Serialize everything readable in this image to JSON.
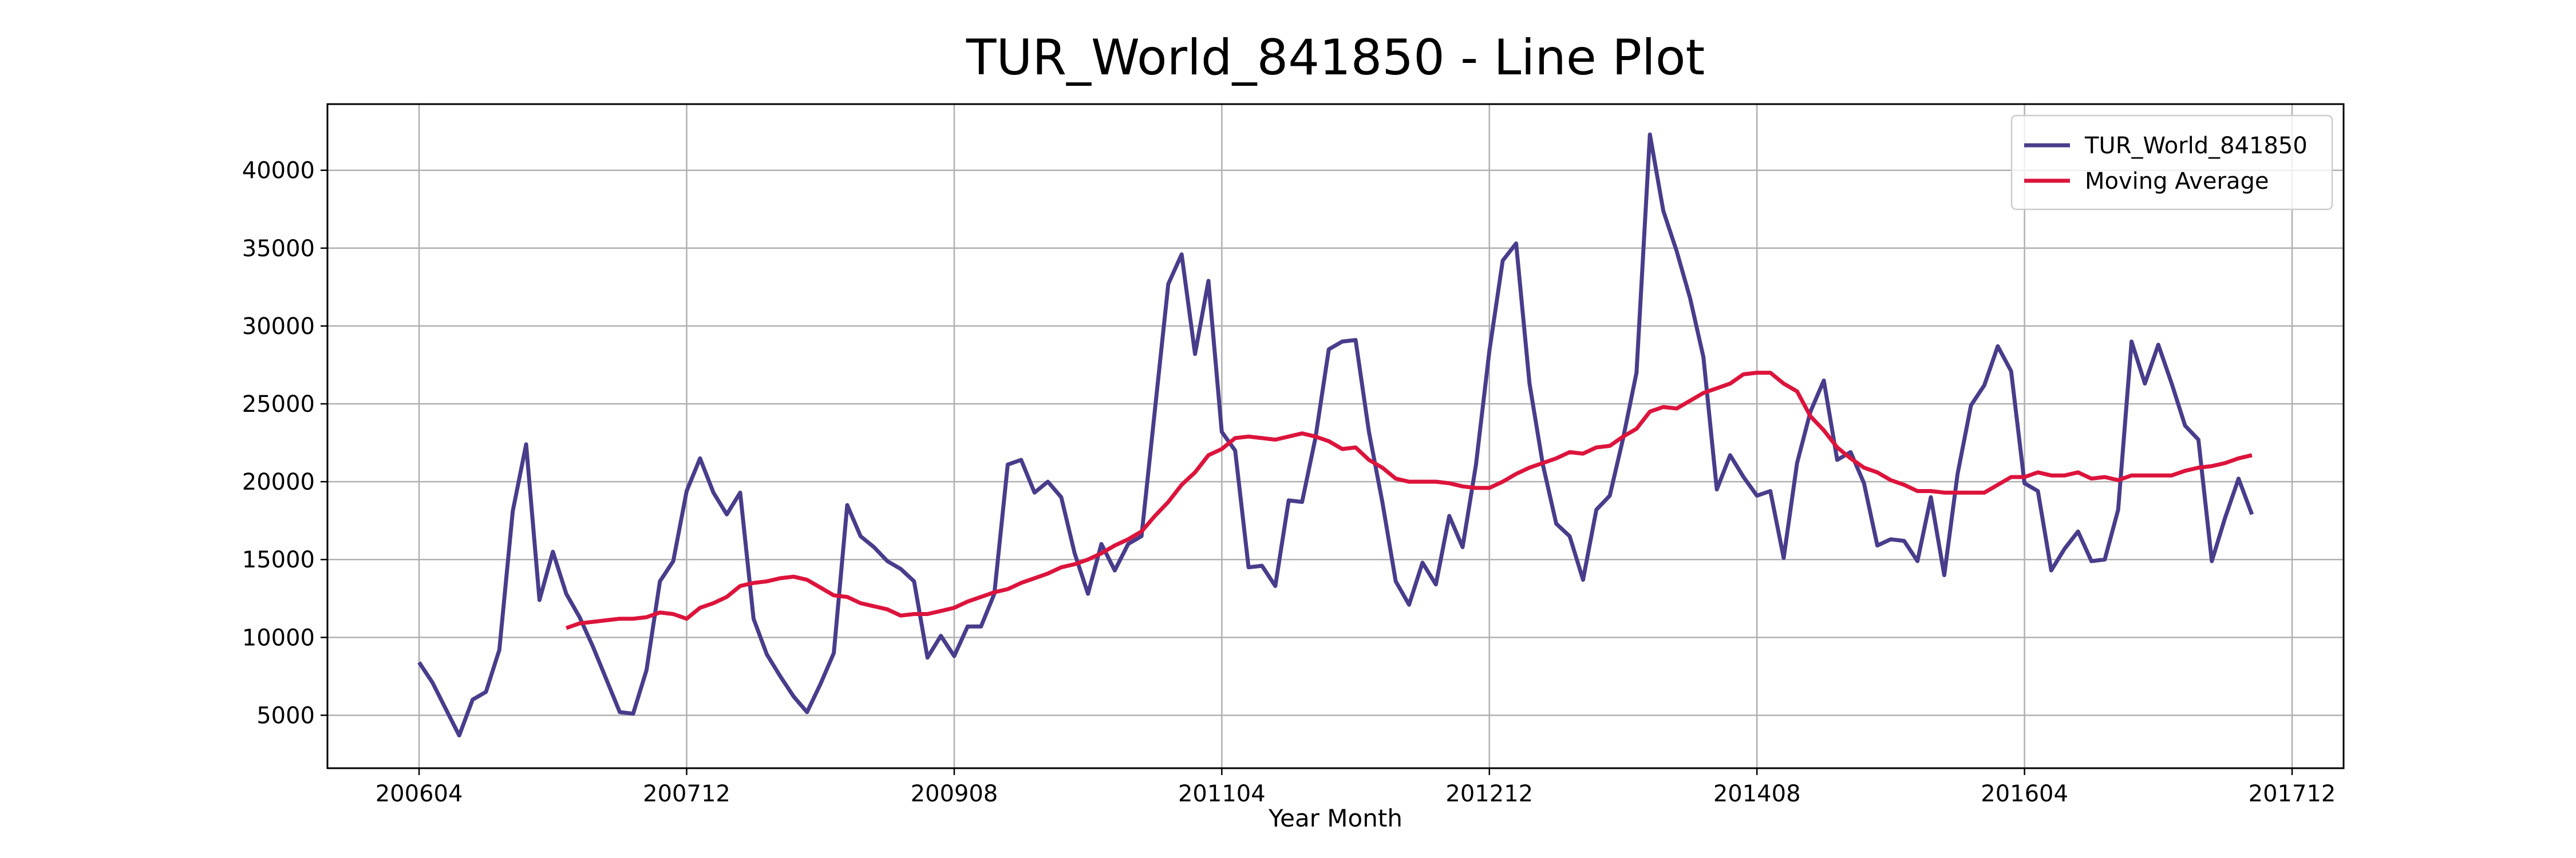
{
  "chart_data": {
    "type": "line",
    "title": "TUR_World_841850 - Line Plot",
    "x_label": "Year Month",
    "x": [
      "200604",
      "200605",
      "200606",
      "200607",
      "200608",
      "200609",
      "200610",
      "200611",
      "200612",
      "200701",
      "200702",
      "200703",
      "200704",
      "200705",
      "200706",
      "200707",
      "200708",
      "200709",
      "200710",
      "200711",
      "200712",
      "200801",
      "200802",
      "200803",
      "200804",
      "200805",
      "200806",
      "200807",
      "200808",
      "200809",
      "200810",
      "200811",
      "200812",
      "200901",
      "200902",
      "200903",
      "200904",
      "200905",
      "200906",
      "200907",
      "200908",
      "200909",
      "200910",
      "200911",
      "200912",
      "201001",
      "201002",
      "201003",
      "201004",
      "201005",
      "201006",
      "201007",
      "201008",
      "201009",
      "201010",
      "201011",
      "201012",
      "201101",
      "201102",
      "201103",
      "201104",
      "201105",
      "201106",
      "201107",
      "201108",
      "201109",
      "201110",
      "201111",
      "201112",
      "201201",
      "201202",
      "201203",
      "201204",
      "201205",
      "201206",
      "201207",
      "201208",
      "201209",
      "201210",
      "201211",
      "201212",
      "201301",
      "201302",
      "201303",
      "201304",
      "201305",
      "201306",
      "201307",
      "201308",
      "201309",
      "201310",
      "201311",
      "201312",
      "201401",
      "201402",
      "201403",
      "201404",
      "201405",
      "201406",
      "201407",
      "201408",
      "201409",
      "201410",
      "201411",
      "201412",
      "201501",
      "201502",
      "201503",
      "201504",
      "201505",
      "201506",
      "201507",
      "201508",
      "201509",
      "201510",
      "201511",
      "201512",
      "201601",
      "201602",
      "201603",
      "201604",
      "201605",
      "201606",
      "201607",
      "201608",
      "201609",
      "201610",
      "201611",
      "201612",
      "201701",
      "201702",
      "201703",
      "201704",
      "201705",
      "201706",
      "201707",
      "201708",
      "201709"
    ],
    "series": [
      {
        "name": "TUR_World_841850",
        "color": "#483d8b",
        "values": [
          8400,
          7100,
          5400,
          3700,
          6000,
          6500,
          9200,
          18100,
          22400,
          12400,
          15500,
          12800,
          11300,
          9400,
          7300,
          5200,
          5100,
          7900,
          13600,
          14900,
          19400,
          21500,
          19300,
          17900,
          19300,
          11200,
          8900,
          7500,
          6200,
          5200,
          7000,
          9000,
          18500,
          16500,
          15800,
          14900,
          14400,
          13600,
          8700,
          10100,
          8800,
          10700,
          10700,
          12800,
          21100,
          21400,
          19300,
          20000,
          19000,
          15400,
          12800,
          16000,
          14300,
          16000,
          16500,
          24600,
          32700,
          34600,
          28200,
          32900,
          23200,
          22000,
          14500,
          14600,
          13300,
          18800,
          18700,
          22800,
          28500,
          29000,
          29100,
          23200,
          18700,
          13600,
          12100,
          14800,
          13400,
          17800,
          15800,
          21100,
          28400,
          34200,
          35300,
          26300,
          21100,
          17300,
          16500,
          13700,
          18200,
          19100,
          22800,
          27000,
          42300,
          37400,
          34800,
          31800,
          28000,
          19500,
          21700,
          20300,
          19100,
          19400,
          15100,
          21200,
          24500,
          26500,
          21400,
          21900,
          19900,
          15900,
          16300,
          16200,
          14900,
          19000,
          14000,
          20500,
          24900,
          26200,
          28700,
          27100,
          19900,
          19400,
          14300,
          15700,
          16800,
          14900,
          15000,
          18200,
          29000,
          26300,
          28800,
          26300,
          23600,
          22700,
          14900,
          17700,
          20200,
          17900
        ]
      },
      {
        "name": "Moving Average",
        "color": "#dc143c",
        "values": [
          null,
          null,
          null,
          null,
          null,
          null,
          null,
          null,
          null,
          null,
          null,
          10600,
          10900,
          11000,
          11100,
          11200,
          11200,
          11300,
          11600,
          11500,
          11200,
          11900,
          12200,
          12600,
          13300,
          13500,
          13600,
          13800,
          13900,
          13700,
          13200,
          12700,
          12600,
          12200,
          12000,
          11800,
          11400,
          11500,
          11500,
          11700,
          11900,
          12300,
          12600,
          12900,
          13100,
          13500,
          13800,
          14100,
          14500,
          14700,
          15000,
          15400,
          15900,
          16300,
          16800,
          17800,
          18700,
          19800,
          20600,
          21700,
          22100,
          22800,
          22900,
          22800,
          22700,
          22900,
          23100,
          22900,
          22600,
          22100,
          22200,
          21400,
          20900,
          20200,
          20000,
          20000,
          20000,
          19900,
          19700,
          19600,
          19600,
          20000,
          20500,
          20900,
          21200,
          21500,
          21900,
          21800,
          22200,
          22300,
          22900,
          23400,
          24500,
          24800,
          24700,
          25200,
          25700,
          26000,
          26300,
          26900,
          27000,
          27000,
          26300,
          25800,
          24200,
          23300,
          22200,
          21500,
          20900,
          20600,
          20100,
          19800,
          19400,
          19400,
          19300,
          19300,
          19300,
          19300,
          19800,
          20300,
          20300,
          20600,
          20400,
          20400,
          20600,
          20200,
          20300,
          20100,
          20400,
          20400,
          20400,
          20400,
          20700,
          20900,
          21000,
          21200,
          21500,
          21700
        ]
      }
    ],
    "xticks": [
      "200604",
      "200712",
      "200908",
      "201104",
      "201212",
      "201408",
      "201604",
      "201712"
    ],
    "ylim": [
      1600,
      44250
    ],
    "yticks": [
      5000,
      10000,
      15000,
      20000,
      25000,
      30000,
      35000,
      40000
    ],
    "grid": true,
    "legend": "upper right"
  }
}
